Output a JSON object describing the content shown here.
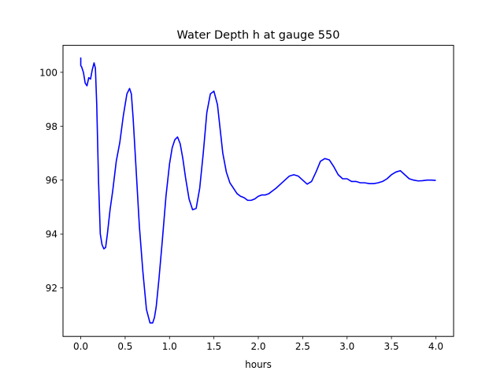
{
  "chart_data": {
    "type": "line",
    "title": "Water Depth h at gauge 550",
    "xlabel": "hours",
    "ylabel": "",
    "xlim": [
      -0.2,
      4.2
    ],
    "ylim": [
      90.2,
      101.0
    ],
    "xticks": [
      0.0,
      0.5,
      1.0,
      1.5,
      2.0,
      2.5,
      3.0,
      3.5,
      4.0
    ],
    "xtick_labels": [
      "0.0",
      "0.5",
      "1.0",
      "1.5",
      "2.0",
      "2.5",
      "3.0",
      "3.5",
      "4.0"
    ],
    "yticks": [
      92,
      94,
      96,
      98,
      100
    ],
    "ytick_labels": [
      "92",
      "94",
      "96",
      "98",
      "100"
    ],
    "grid": false,
    "series": [
      {
        "color": "#0000ff",
        "x": [
          0.0,
          0.0,
          0.01,
          0.03,
          0.05,
          0.07,
          0.09,
          0.11,
          0.13,
          0.15,
          0.165,
          0.18,
          0.2,
          0.22,
          0.24,
          0.26,
          0.28,
          0.3,
          0.33,
          0.36,
          0.4,
          0.44,
          0.48,
          0.52,
          0.55,
          0.57,
          0.59,
          0.62,
          0.66,
          0.7,
          0.74,
          0.78,
          0.81,
          0.83,
          0.85,
          0.88,
          0.92,
          0.96,
          1.0,
          1.03,
          1.06,
          1.09,
          1.12,
          1.15,
          1.18,
          1.22,
          1.26,
          1.3,
          1.34,
          1.38,
          1.42,
          1.46,
          1.5,
          1.54,
          1.57,
          1.6,
          1.64,
          1.68,
          1.72,
          1.76,
          1.8,
          1.84,
          1.88,
          1.92,
          1.96,
          2.0,
          2.04,
          2.08,
          2.12,
          2.16,
          2.2,
          2.25,
          2.3,
          2.35,
          2.4,
          2.45,
          2.5,
          2.55,
          2.6,
          2.65,
          2.7,
          2.75,
          2.8,
          2.85,
          2.9,
          2.95,
          3.0,
          3.05,
          3.1,
          3.15,
          3.2,
          3.25,
          3.3,
          3.35,
          3.4,
          3.45,
          3.5,
          3.55,
          3.6,
          3.65,
          3.7,
          3.75,
          3.8,
          3.85,
          3.9,
          3.95,
          4.0
        ],
        "values": [
          100.55,
          100.25,
          100.2,
          100.0,
          99.6,
          99.5,
          99.8,
          99.75,
          100.1,
          100.35,
          100.15,
          98.8,
          96.0,
          94.0,
          93.6,
          93.45,
          93.5,
          94.0,
          94.9,
          95.6,
          96.7,
          97.4,
          98.4,
          99.2,
          99.4,
          99.2,
          98.3,
          96.6,
          94.3,
          92.6,
          91.2,
          90.7,
          90.7,
          90.9,
          91.3,
          92.3,
          93.8,
          95.4,
          96.6,
          97.2,
          97.5,
          97.6,
          97.35,
          96.8,
          96.1,
          95.3,
          94.9,
          94.95,
          95.7,
          97.0,
          98.5,
          99.2,
          99.3,
          98.8,
          97.9,
          97.0,
          96.3,
          95.9,
          95.7,
          95.5,
          95.4,
          95.35,
          95.25,
          95.25,
          95.3,
          95.4,
          95.45,
          95.45,
          95.5,
          95.6,
          95.7,
          95.85,
          96.0,
          96.15,
          96.2,
          96.15,
          96.0,
          95.85,
          95.95,
          96.3,
          96.7,
          96.8,
          96.75,
          96.5,
          96.2,
          96.05,
          96.05,
          95.95,
          95.95,
          95.9,
          95.9,
          95.87,
          95.87,
          95.9,
          95.95,
          96.05,
          96.2,
          96.3,
          96.35,
          96.2,
          96.05,
          96.0,
          95.97,
          95.98,
          96.0,
          96.0,
          95.99
        ]
      }
    ]
  }
}
